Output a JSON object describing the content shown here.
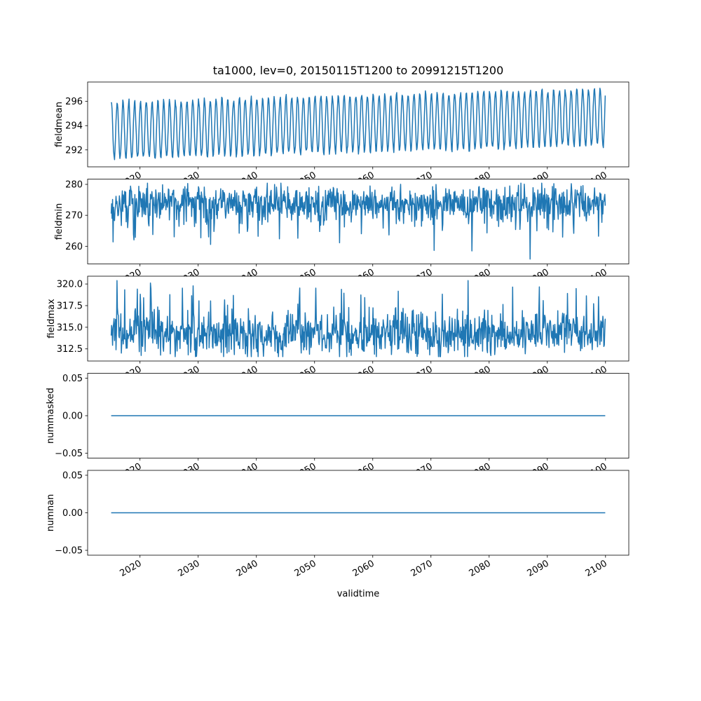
{
  "chart_data": {
    "type": "line",
    "title": "ta1000, lev=0, 20150115T1200 to 20991215T1200",
    "xlabel": "validtime",
    "line_color": "#1f77b4",
    "background": "#ffffff",
    "x": {
      "label": "validtime",
      "start": 2015.042,
      "end": 2099.958,
      "points": 1020,
      "xlim": [
        2011.0,
        2104.0
      ],
      "xticks": [
        2020,
        2030,
        2040,
        2050,
        2060,
        2070,
        2080,
        2090,
        2100
      ],
      "xtick_labels": [
        "2020",
        "2030",
        "2040",
        "2050",
        "2060",
        "2070",
        "2080",
        "2090",
        "2100"
      ]
    },
    "subplots": [
      {
        "ylabel": "fieldmean",
        "ylim": [
          290.6,
          297.6
        ],
        "ytick_values": [
          292,
          294,
          296
        ],
        "ytick_labels": [
          "292",
          "294",
          "296"
        ],
        "description": "Annual seasonal oscillation with slow upward trend; troughs rise from ~291.2 to ~292.4, peaks from ~296.0 to ~297.2",
        "gen": {
          "kind": "seasonal",
          "base": 293.6,
          "trend": 0.013,
          "amplitude": 2.35,
          "phase": 0.04,
          "noise": 0.12,
          "seed": 11
        }
      },
      {
        "ylabel": "fieldmin",
        "ylim": [
          254.3,
          281.7
        ],
        "ytick_values": [
          260,
          270,
          280
        ],
        "ytick_labels": [
          "260",
          "270",
          "280"
        ],
        "description": "Noisy series mostly between 266 and 280 with frequent downward spikes to 256-264, minimum near 255",
        "gen": {
          "kind": "noisy",
          "base": 274.0,
          "noise": 2.8,
          "dip_prob": 0.07,
          "dip_min": 3,
          "dip_span": 9,
          "clamp": [
            255.2,
            280.4
          ],
          "seed": 22
        }
      },
      {
        "ylabel": "fieldmax",
        "ylim": [
          311.1,
          320.9
        ],
        "ytick_values": [
          312.5,
          315.0,
          317.5,
          320.0
        ],
        "ytick_labels": [
          "312.5",
          "315.0",
          "317.5",
          "320.0"
        ],
        "description": "Noisy series mostly between 312 and 317.5 with occasional upward spikes to ~320.5",
        "gen": {
          "kind": "noisy",
          "base": 314.2,
          "noise": 1.25,
          "spike_prob": 0.06,
          "spike_min": 1.5,
          "spike_span": 3.5,
          "clamp": [
            311.6,
            320.4
          ],
          "seed": 33
        }
      },
      {
        "ylabel": "nummasked",
        "ylim": [
          -0.0565,
          0.0565
        ],
        "ytick_values": [
          -0.05,
          0,
          0.05
        ],
        "ytick_labels": [
          "−0.05",
          "0.00",
          "0.05"
        ],
        "description": "Constant zero line across full time range",
        "gen": {
          "kind": "constant",
          "value": 0,
          "seed": 44
        }
      },
      {
        "ylabel": "numnan",
        "ylim": [
          -0.0565,
          0.0565
        ],
        "ytick_values": [
          -0.05,
          0,
          0.05
        ],
        "ytick_labels": [
          "−0.05",
          "0.00",
          "0.05"
        ],
        "description": "Constant zero line across full time range",
        "gen": {
          "kind": "constant",
          "value": 0,
          "seed": 55
        }
      }
    ]
  }
}
